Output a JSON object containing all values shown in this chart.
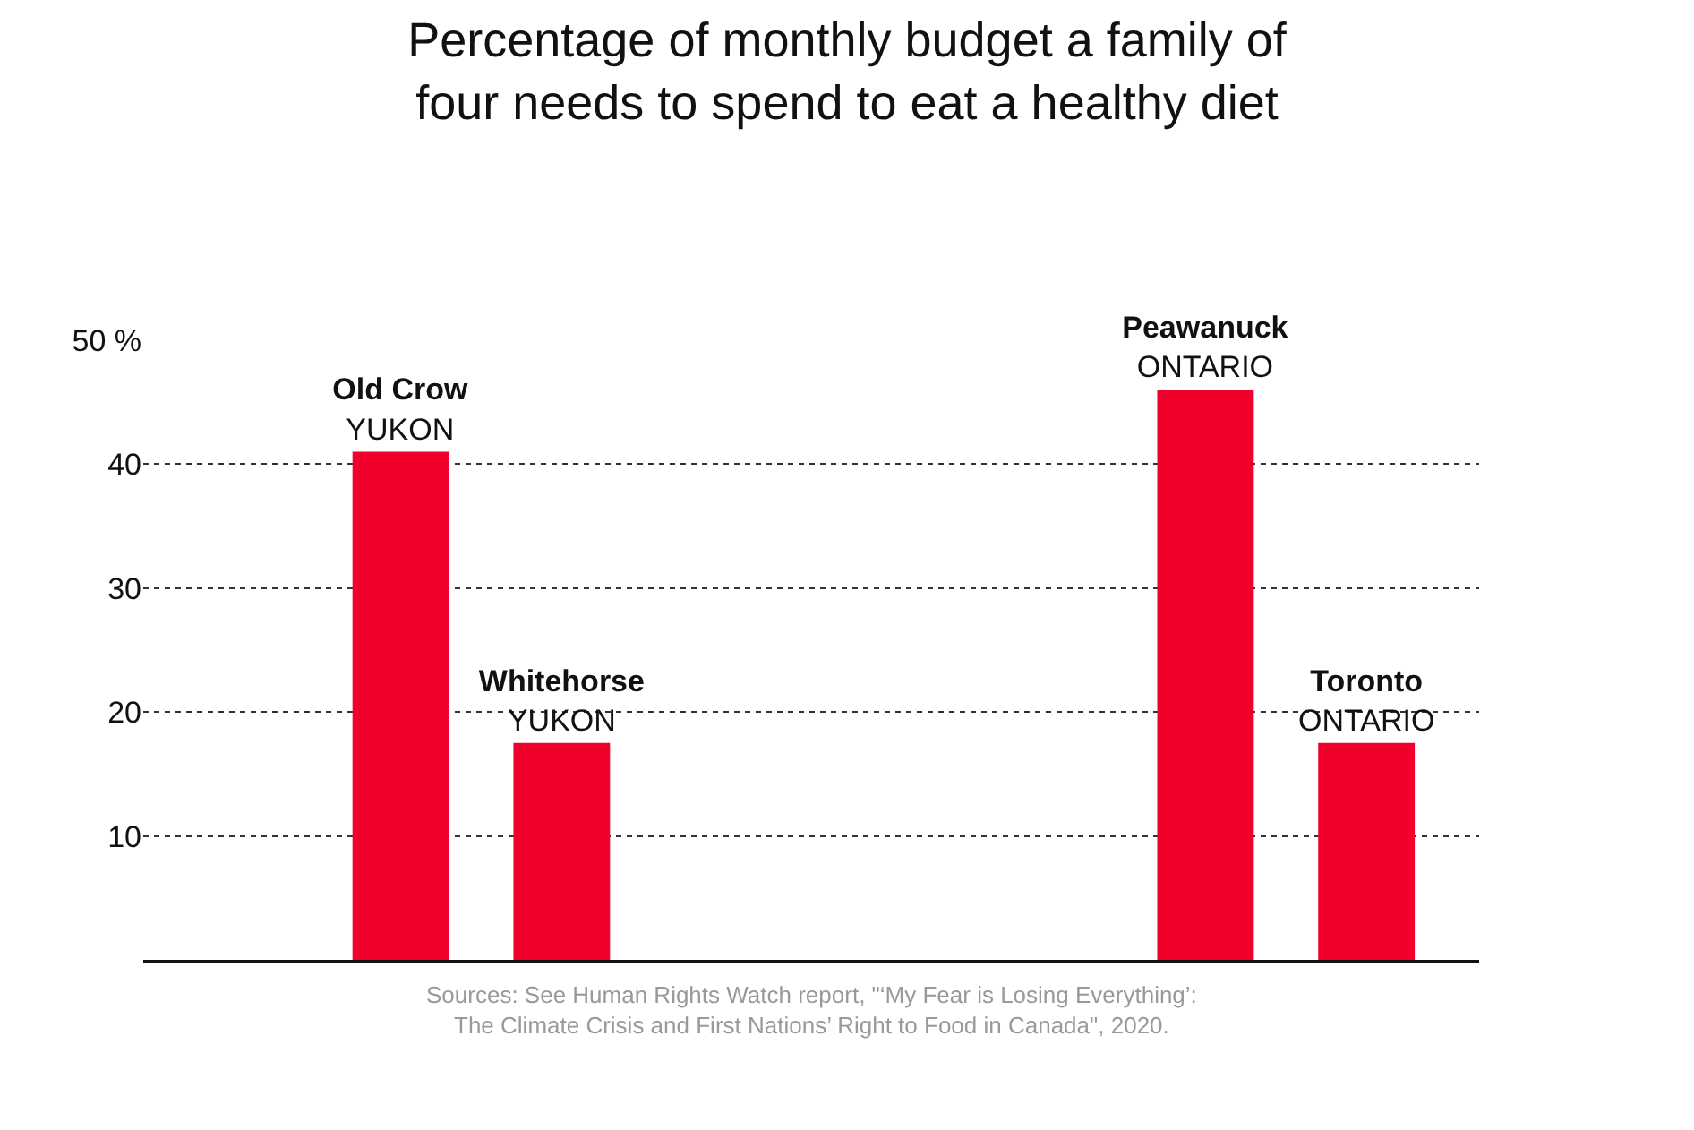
{
  "chart_data": {
    "type": "bar",
    "title": "Percentage of monthly budget a family of\nfour needs to spend to eat a healthy diet",
    "categories": [
      "Old Crow\nYUKON",
      "Whitehorse\nYUKON",
      null,
      null,
      null,
      "Peawanuck\nONTARIO",
      "Toronto\nONTARIO"
    ],
    "values": [
      41,
      17.5,
      null,
      null,
      null,
      46,
      17.5
    ],
    "color": "#f0002a",
    "ylim": [
      0,
      50
    ],
    "yticks": [
      10,
      20,
      30,
      40,
      {
        "value": 50,
        "label": "50 %"
      }
    ],
    "grid": "y",
    "tick_labels": "y",
    "annotations": [
      "Sources: See Human Rights Watch report, \"‘My Fear is Losing Everything’:\nThe Climate Crisis and First Nations’ Right to Food in Canada\", 2020."
    ]
  }
}
